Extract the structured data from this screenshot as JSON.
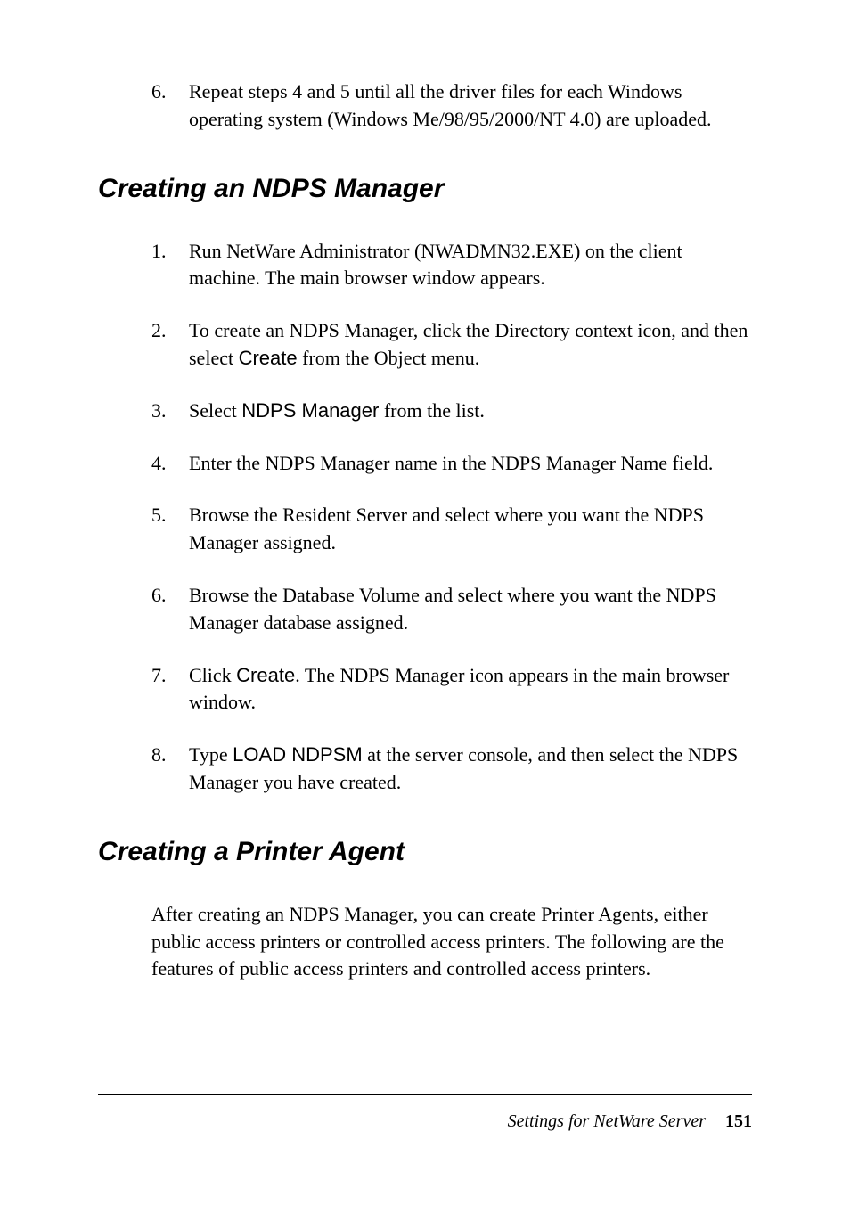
{
  "topList": {
    "items": [
      {
        "number": "6.",
        "text": "Repeat steps 4 and 5 until all the driver files for each Windows operating system (Windows Me/98/95/2000/NT 4.0) are uploaded."
      }
    ]
  },
  "section1": {
    "heading": "Creating an NDPS Manager",
    "items": [
      {
        "number": "1.",
        "text": "Run NetWare Administrator (NWADMN32.EXE) on the client machine. The main browser window appears."
      },
      {
        "number": "2.",
        "textBefore": "To create an NDPS Manager, click the Directory context icon, and then select ",
        "label": "Create",
        "textAfter": " from the Object menu."
      },
      {
        "number": "3.",
        "textBefore": "Select ",
        "label": "NDPS Manager",
        "textAfter": " from the list."
      },
      {
        "number": "4.",
        "text": "Enter the NDPS Manager name in the NDPS Manager Name field."
      },
      {
        "number": "5.",
        "text": "Browse the Resident Server and select where you want the NDPS Manager assigned."
      },
      {
        "number": "6.",
        "text": "Browse the Database Volume and select where you want the NDPS Manager database assigned."
      },
      {
        "number": "7.",
        "textBefore": "Click ",
        "label": "Create",
        "textAfter": ". The NDPS Manager icon appears in the main browser window."
      },
      {
        "number": "8.",
        "textBefore": "Type ",
        "label": "LOAD NDPSM",
        "textAfter": " at the server console, and then select the NDPS Manager you have created."
      }
    ]
  },
  "section2": {
    "heading": "Creating a Printer Agent",
    "paragraph": "After creating an NDPS Manager, you can create Printer Agents, either public access printers or controlled access printers. The following are the features of public access printers and controlled access printers."
  },
  "footer": {
    "text": "Settings for NetWare Server",
    "pageNumber": "151"
  }
}
